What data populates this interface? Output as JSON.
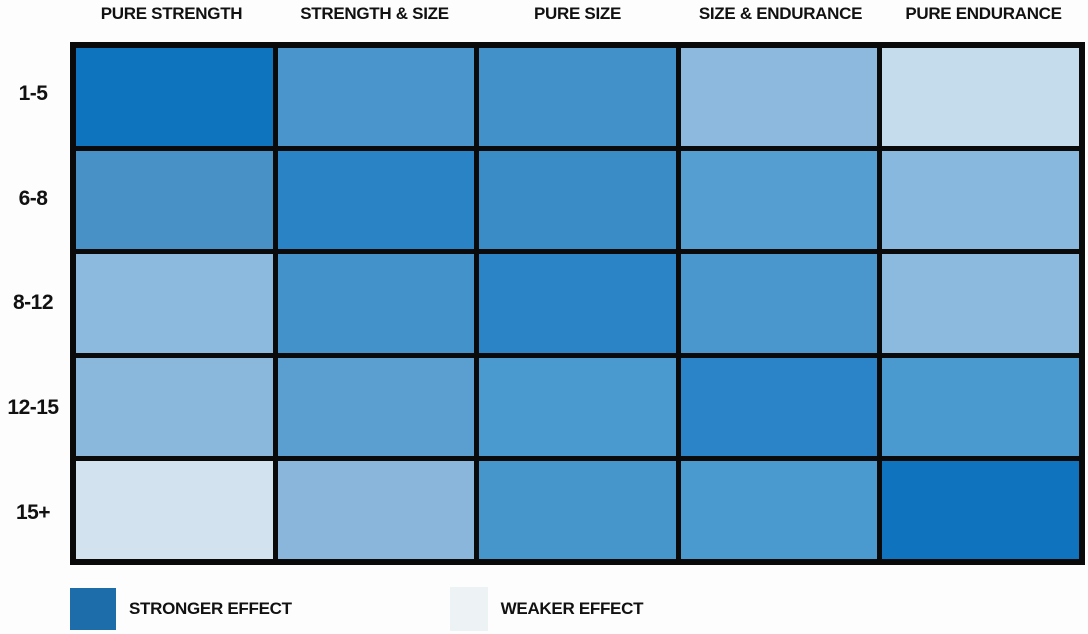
{
  "page": {
    "background": "#fdfdfd",
    "text_color": "#111111"
  },
  "chart_data": {
    "type": "heatmap",
    "title": "",
    "xlabel": "",
    "ylabel": "",
    "columns": [
      "PURE STRENGTH",
      "STRENGTH & SIZE",
      "PURE SIZE",
      "SIZE & ENDURANCE",
      "PURE ENDURANCE"
    ],
    "rows": [
      "1-5",
      "6-8",
      "8-12",
      "12-15",
      "15+"
    ],
    "values_note": "relative effect strength, estimated from color intensity, 0 = weakest, 1 = strongest",
    "values": [
      [
        1.0,
        0.65,
        0.68,
        0.35,
        0.15
      ],
      [
        0.67,
        0.85,
        0.75,
        0.6,
        0.37
      ],
      [
        0.35,
        0.68,
        0.82,
        0.64,
        0.35
      ],
      [
        0.36,
        0.56,
        0.62,
        0.82,
        0.62
      ],
      [
        0.1,
        0.37,
        0.65,
        0.62,
        1.0
      ]
    ],
    "cell_colors": [
      [
        "#0e74bd",
        "#4a95cb",
        "#4391c9",
        "#8cb9dd",
        "#c5dcec"
      ],
      [
        "#4791c7",
        "#2a83c4",
        "#3a8cc6",
        "#559ed2",
        "#89b8de"
      ],
      [
        "#8cbade",
        "#4392c9",
        "#2b84c6",
        "#4a97cd",
        "#8cbade"
      ],
      [
        "#8ab8dd",
        "#5b9fd1",
        "#4a99cf",
        "#2b84c7",
        "#4a99cf"
      ],
      [
        "#d2e2ef",
        "#8ab6dc",
        "#4696cc",
        "#4a99cf",
        "#0f74bd"
      ]
    ],
    "grid_on": true,
    "grid_line_color": "#0a0a0a",
    "legend_position": "bottom-left",
    "legend": [
      {
        "label": "STRONGER EFFECT",
        "color": "#1d6dab"
      },
      {
        "label": "WEAKER EFFECT",
        "color": "#edf2f5"
      }
    ]
  }
}
